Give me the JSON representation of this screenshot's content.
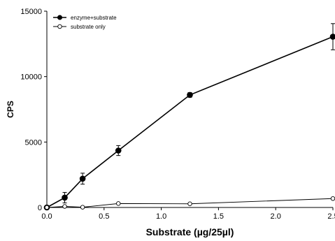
{
  "chart_data": {
    "type": "line",
    "title": "",
    "xlabel": "Substrate (µg/25µl)",
    "ylabel": "CPS",
    "xlim": [
      0,
      2.5
    ],
    "ylim": [
      0,
      15000
    ],
    "x_ticks": [
      0.0,
      0.5,
      1.0,
      1.5,
      2.0,
      2.5
    ],
    "x_tick_labels": [
      "0.0",
      "0.5",
      "1.0",
      "1.5",
      "2.0",
      "2.5"
    ],
    "y_ticks": [
      0,
      5000,
      10000,
      15000
    ],
    "y_tick_labels": [
      "0",
      "5000",
      "10000",
      "15000"
    ],
    "grid": false,
    "legend_position": "top-left",
    "series": [
      {
        "name": "enzyme+substrate",
        "marker": "filled-circle",
        "color": "#000000",
        "x": [
          0,
          0.156,
          0.3125,
          0.625,
          1.25,
          2.5
        ],
        "y": [
          0,
          750,
          2200,
          4350,
          8600,
          13050
        ],
        "error": [
          0,
          400,
          420,
          380,
          180,
          1000
        ]
      },
      {
        "name": "substrate only",
        "marker": "open-circle",
        "color": "#000000",
        "x": [
          0,
          0.156,
          0.3125,
          0.625,
          1.25,
          2.5
        ],
        "y": [
          0,
          80,
          20,
          300,
          280,
          680
        ],
        "error": [
          0,
          0,
          0,
          0,
          0,
          0
        ]
      }
    ]
  }
}
